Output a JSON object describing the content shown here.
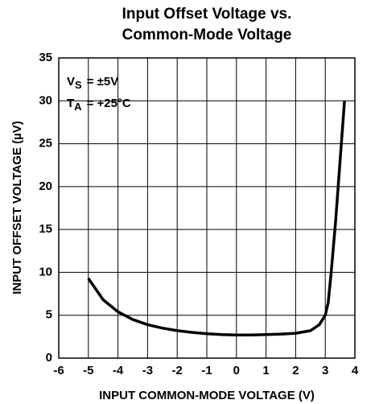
{
  "chart_data": {
    "type": "line",
    "title": [
      "Input Offset Voltage vs.",
      "Common-Mode Voltage"
    ],
    "xlabel": "INPUT COMMON-MODE VOLTAGE (V)",
    "ylabel": "INPUT OFFSET VOLTAGE (µV)",
    "annotations": [
      {
        "symbol": "V",
        "subscript": "S",
        "text": "= ±5V"
      },
      {
        "symbol": "T",
        "subscript": "A",
        "text": "= +25°C"
      }
    ],
    "xlim": [
      -6,
      4
    ],
    "xticks": [
      -6,
      -5,
      -4,
      -3,
      -2,
      -1,
      0,
      1,
      2,
      3,
      4
    ],
    "ylim": [
      0,
      35
    ],
    "yticks": [
      0,
      5,
      10,
      15,
      20,
      25,
      30,
      35
    ],
    "grid": true,
    "series": [
      {
        "color": "#000000",
        "x": [
          -5,
          -4.5,
          -4,
          -3.5,
          -3,
          -2.5,
          -2,
          -1.5,
          -1,
          -0.5,
          0,
          0.5,
          1,
          1.5,
          2,
          2.5,
          2.8,
          3.0,
          3.1,
          3.2,
          3.35,
          3.5,
          3.65
        ],
        "values": [
          9.3,
          6.8,
          5.4,
          4.5,
          3.9,
          3.5,
          3.2,
          3.0,
          2.85,
          2.75,
          2.7,
          2.7,
          2.75,
          2.8,
          2.9,
          3.2,
          3.9,
          5.0,
          6.5,
          10,
          16,
          23,
          30
        ]
      }
    ]
  }
}
